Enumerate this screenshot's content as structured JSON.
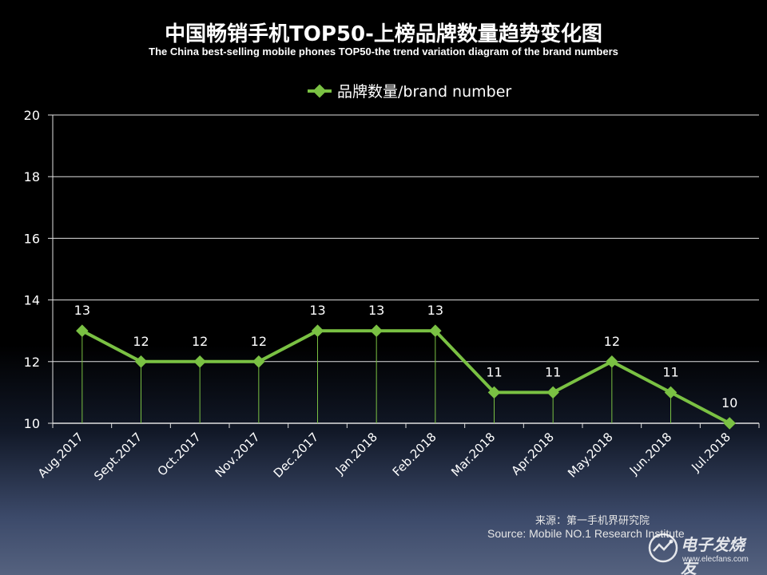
{
  "chart_data": {
    "type": "line",
    "title": "中国畅销手机TOP50-上榜品牌数量趋势变化图",
    "subtitle": "The China best-selling mobile phones TOP50-the trend variation diagram of the brand numbers",
    "categories": [
      "Aug.2017",
      "Sept.2017",
      "Oct.2017",
      "Nov.2017",
      "Dec.2017",
      "Jan.2018",
      "Feb.2018",
      "Mar.2018",
      "Apr.2018",
      "May.2018",
      "Jun.2018",
      "Jul.2018"
    ],
    "series": [
      {
        "name": "品牌数量/brand number",
        "values": [
          13,
          12,
          12,
          12,
          13,
          13,
          13,
          11,
          11,
          12,
          11,
          10
        ],
        "color": "#7ac143"
      }
    ],
    "y_ticks": [
      "10",
      "12",
      "14",
      "16",
      "18",
      "20"
    ],
    "ylim": [
      10,
      20
    ],
    "grid": true,
    "legend_position": "top-center",
    "data_labels": true,
    "drop_lines": true
  },
  "source": {
    "cn": "来源：第一手机界研究院",
    "en": "Source: Mobile NO.1 Research Institute"
  },
  "watermark": {
    "text": "电子发烧友",
    "url": "www.elecfans.com",
    "icon": "elecfans-logo-icon"
  }
}
